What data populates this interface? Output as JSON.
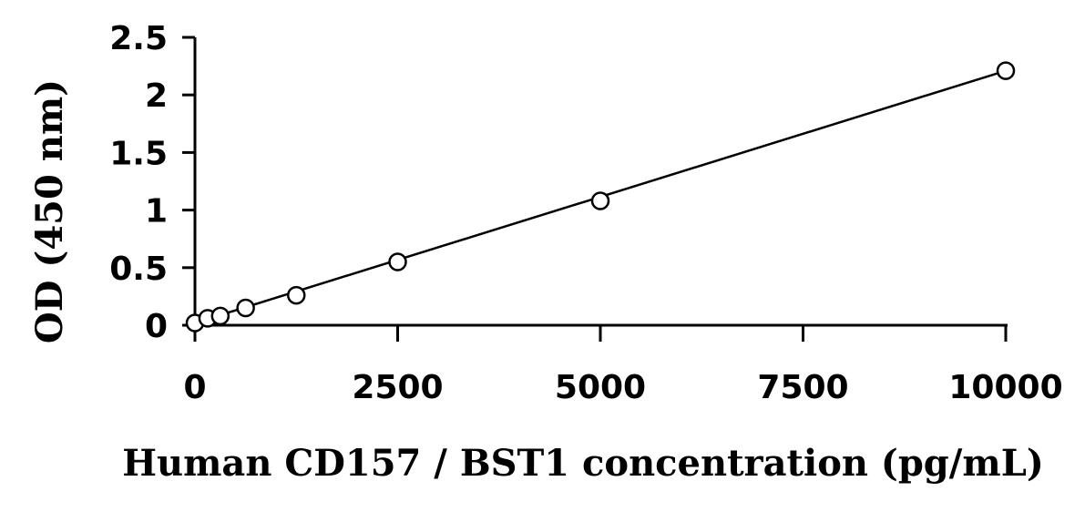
{
  "chart_data": {
    "type": "scatter",
    "title": "",
    "xlabel": "Human CD157 / BST1 concentration (pg/mL)",
    "ylabel": "OD (450 nm)",
    "xlim": [
      0,
      10000
    ],
    "ylim": [
      0,
      2.5
    ],
    "xticks": [
      0,
      2500,
      5000,
      7500,
      10000
    ],
    "yticks": [
      0,
      0.5,
      1,
      1.5,
      2,
      2.5
    ],
    "xtick_labels": [
      "0",
      "2500",
      "5000",
      "7500",
      "10000"
    ],
    "ytick_labels": [
      "0",
      "0.5",
      "1",
      "1.5",
      "2",
      "2.5"
    ],
    "grid": false,
    "legend": "none",
    "marker": "open-circle",
    "series": [
      {
        "x": [
          0,
          156.25,
          312.5,
          625,
          1250,
          2500,
          5000,
          10000
        ],
        "y": [
          0.02,
          0.06,
          0.08,
          0.15,
          0.26,
          0.55,
          1.08,
          2.21
        ]
      }
    ],
    "fit_line": {
      "x": [
        0,
        10000
      ],
      "y": [
        0.02,
        2.21
      ]
    },
    "colors": {
      "line": "#000000",
      "marker_stroke": "#000000",
      "marker_fill": "#ffffff"
    }
  }
}
